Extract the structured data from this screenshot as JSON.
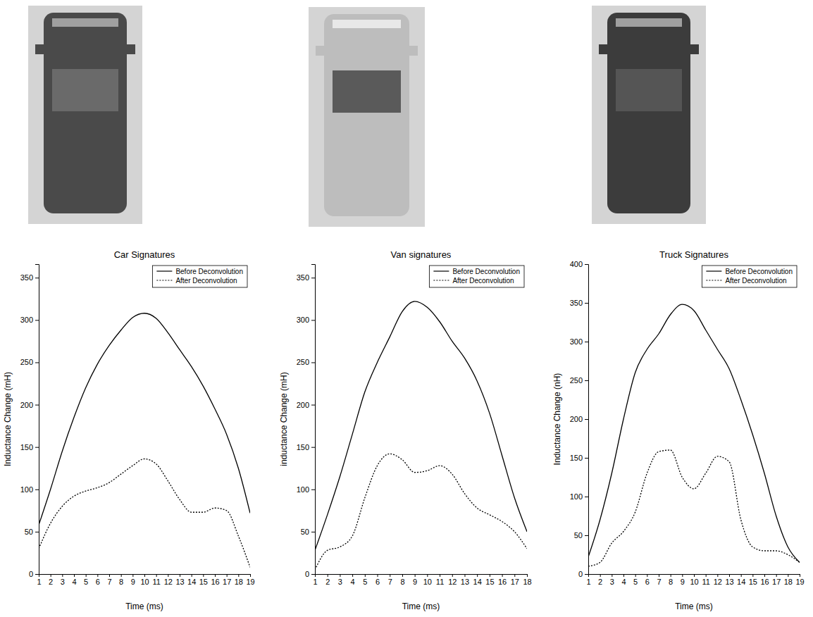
{
  "chart_data": [
    {
      "type": "line",
      "title": "Car Signatures",
      "x_label": "Time (ms)",
      "y_label": "Inductance Change (mH)",
      "x": [
        1,
        2,
        3,
        4,
        5,
        6,
        7,
        8,
        9,
        10,
        11,
        12,
        13,
        14,
        15,
        16,
        17,
        18,
        19
      ],
      "xlim": [
        1,
        19
      ],
      "xticks": [
        1,
        2,
        3,
        4,
        5,
        6,
        7,
        8,
        9,
        10,
        11,
        12,
        13,
        14,
        15,
        16,
        17,
        18,
        19
      ],
      "ylim": [
        0,
        366
      ],
      "yticks": [
        0,
        50,
        100,
        150,
        200,
        250,
        300,
        350
      ],
      "legend": "upper right",
      "series": [
        {
          "name": "Before Deconvolution",
          "color": "#000000",
          "line_style": "solid",
          "values": [
            58,
            100,
            145,
            185,
            220,
            248,
            270,
            288,
            303,
            308,
            302,
            285,
            265,
            245,
            222,
            195,
            165,
            125,
            72
          ]
        },
        {
          "name": "After Deconvolution",
          "color": "#000000",
          "line_style": "dotted",
          "values": [
            30,
            60,
            80,
            92,
            98,
            102,
            108,
            118,
            128,
            136,
            130,
            110,
            88,
            73,
            73,
            78,
            75,
            45,
            8
          ]
        }
      ]
    },
    {
      "type": "line",
      "title": "Van signatures",
      "x_label": "Time (ms)",
      "y_label": "inductance Change (mH)",
      "x": [
        1,
        2,
        3,
        4,
        5,
        6,
        7,
        8,
        9,
        10,
        11,
        12,
        13,
        14,
        15,
        16,
        17,
        18
      ],
      "xlim": [
        1,
        18
      ],
      "xticks": [
        1,
        2,
        3,
        4,
        5,
        6,
        7,
        8,
        9,
        10,
        11,
        12,
        13,
        14,
        15,
        16,
        17,
        18
      ],
      "ylim": [
        0,
        366
      ],
      "yticks": [
        0,
        50,
        100,
        150,
        200,
        250,
        300,
        350
      ],
      "legend": "upper right",
      "series": [
        {
          "name": "Before Deconvolution",
          "color": "#000000",
          "line_style": "solid",
          "values": [
            28,
            70,
            115,
            165,
            215,
            250,
            280,
            310,
            322,
            315,
            298,
            275,
            255,
            228,
            190,
            140,
            90,
            50
          ]
        },
        {
          "name": "After Deconvolution",
          "color": "#000000",
          "line_style": "dotted",
          "values": [
            5,
            28,
            32,
            45,
            90,
            128,
            142,
            135,
            120,
            122,
            128,
            118,
            95,
            78,
            70,
            62,
            50,
            30
          ]
        }
      ]
    },
    {
      "type": "line",
      "title": "Truck Signatures",
      "x_label": "Time (ms)",
      "y_label": "Inductance Change (nH)",
      "x": [
        1,
        2,
        3,
        4,
        5,
        6,
        7,
        8,
        9,
        10,
        11,
        12,
        13,
        14,
        15,
        16,
        17,
        18,
        19
      ],
      "xlim": [
        1,
        19
      ],
      "xticks": [
        1,
        2,
        3,
        4,
        5,
        6,
        7,
        8,
        9,
        10,
        11,
        12,
        13,
        14,
        15,
        16,
        17,
        18,
        19
      ],
      "ylim": [
        0,
        400
      ],
      "yticks": [
        0,
        50,
        100,
        150,
        200,
        250,
        300,
        350,
        400
      ],
      "legend": "upper right",
      "series": [
        {
          "name": "Before Deconvolution",
          "color": "#000000",
          "line_style": "solid",
          "values": [
            22,
            70,
            130,
            200,
            260,
            290,
            310,
            335,
            348,
            340,
            315,
            290,
            265,
            225,
            180,
            130,
            75,
            35,
            15
          ]
        },
        {
          "name": "After Deconvolution",
          "color": "#000000",
          "line_style": "dotted",
          "values": [
            10,
            15,
            40,
            55,
            80,
            130,
            158,
            160,
            125,
            110,
            130,
            152,
            145,
            70,
            35,
            30,
            30,
            25,
            15
          ]
        }
      ]
    }
  ]
}
